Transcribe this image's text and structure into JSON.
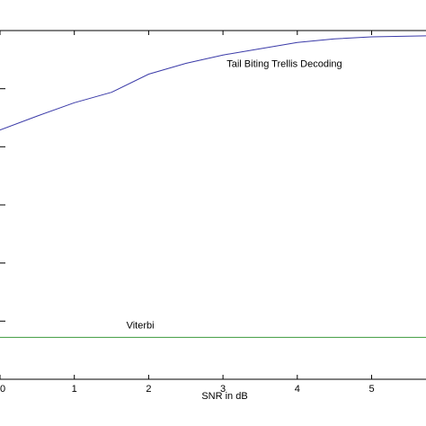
{
  "chart_data": {
    "type": "line",
    "xlabel": "SNR in dB",
    "ylabel": "",
    "xlim": [
      0,
      5.75
    ],
    "ylim": [
      0,
      1
    ],
    "xticks": [
      0,
      1,
      2,
      3,
      4,
      5
    ],
    "ytick_count": 7,
    "grid": false,
    "series": [
      {
        "name": "",
        "color": "#3a3aa8",
        "x": [
          0,
          0.5,
          1,
          1.5,
          2,
          2.5,
          3,
          3.5,
          4,
          4.5,
          5,
          5.75
        ],
        "y": [
          0.715,
          0.755,
          0.793,
          0.823,
          0.875,
          0.906,
          0.93,
          0.948,
          0.966,
          0.976,
          0.982,
          0.985
        ]
      },
      {
        "name": "",
        "color": "#3c9a3c",
        "x": [
          0,
          5.75
        ],
        "y": [
          0.12,
          0.12
        ]
      }
    ],
    "annotations": [
      {
        "text": "Tail Biting Trellis Decoding",
        "x": 3.05,
        "y": 0.895
      },
      {
        "text": "Viterbi",
        "x": 1.7,
        "y": 0.145
      }
    ]
  }
}
